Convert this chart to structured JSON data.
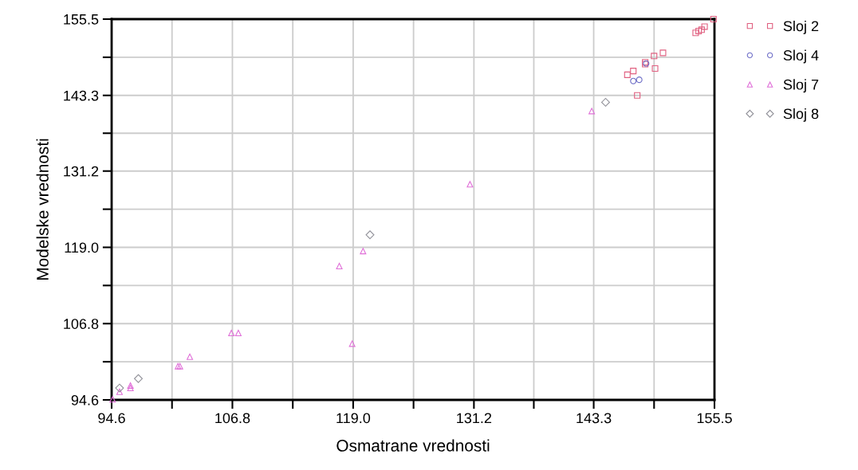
{
  "chart_data": {
    "type": "scatter",
    "xlabel": "Osmatrane vrednosti",
    "ylabel": "Modelske vrednosti",
    "xlim": [
      94.6,
      155.5
    ],
    "ylim": [
      94.6,
      155.5
    ],
    "xticks": [
      94.6,
      {
        "value": 100.7,
        "label": null
      },
      106.8,
      {
        "value": 112.9,
        "label": null
      },
      {
        "value": 119,
        "label": "119.0"
      },
      {
        "value": 125.1,
        "label": null
      },
      131.2,
      {
        "value": 137.25,
        "label": null
      },
      143.3,
      {
        "value": 149.4,
        "label": null
      },
      155.5
    ],
    "yticks": [
      94.6,
      {
        "value": 100.7,
        "label": null
      },
      106.8,
      {
        "value": 112.9,
        "label": null
      },
      {
        "value": 119,
        "label": "119.0"
      },
      {
        "value": 125.1,
        "label": null
      },
      131.2,
      {
        "value": 137.25,
        "label": null
      },
      143.3,
      {
        "value": 149.4,
        "label": null
      },
      155.5
    ],
    "grid": true,
    "legend": "top right",
    "series": [
      {
        "name": "Sloj 2",
        "color": "#e06080",
        "marker": "square",
        "x": [
          147.7,
          146.7,
          147.3,
          148.5,
          148.5,
          149.5,
          149.4,
          150.3,
          153.6,
          153.9,
          154.2,
          154.5,
          155.4
        ],
        "values": [
          143.3,
          146.6,
          147.2,
          148.3,
          148.6,
          147.6,
          149.6,
          150.1,
          153.3,
          153.6,
          153.8,
          154.3,
          155.5
        ]
      },
      {
        "name": "Sloj 4",
        "color": "#7070c8",
        "marker": "circle",
        "x": [
          147.3,
          147.9,
          148.6
        ],
        "values": [
          145.6,
          145.8,
          148.4
        ]
      },
      {
        "name": "Sloj 7",
        "color": "#e070d8",
        "marker": "triangle",
        "x": [
          94.7,
          95.4,
          96.5,
          96.5,
          101.3,
          101.5,
          102.5,
          106.7,
          107.4,
          117.6,
          120.0,
          118.9,
          130.8,
          143.1
        ],
        "values": [
          94.7,
          95.9,
          96.9,
          96.5,
          100.0,
          100.0,
          101.5,
          105.3,
          105.3,
          116.0,
          118.4,
          103.6,
          129.1,
          140.8
        ]
      },
      {
        "name": "Sloj 8",
        "color": "#909098",
        "marker": "diamond",
        "x": [
          95.4,
          97.3,
          120.7,
          144.5
        ],
        "values": [
          96.5,
          98.0,
          121.0,
          142.2
        ]
      }
    ]
  }
}
